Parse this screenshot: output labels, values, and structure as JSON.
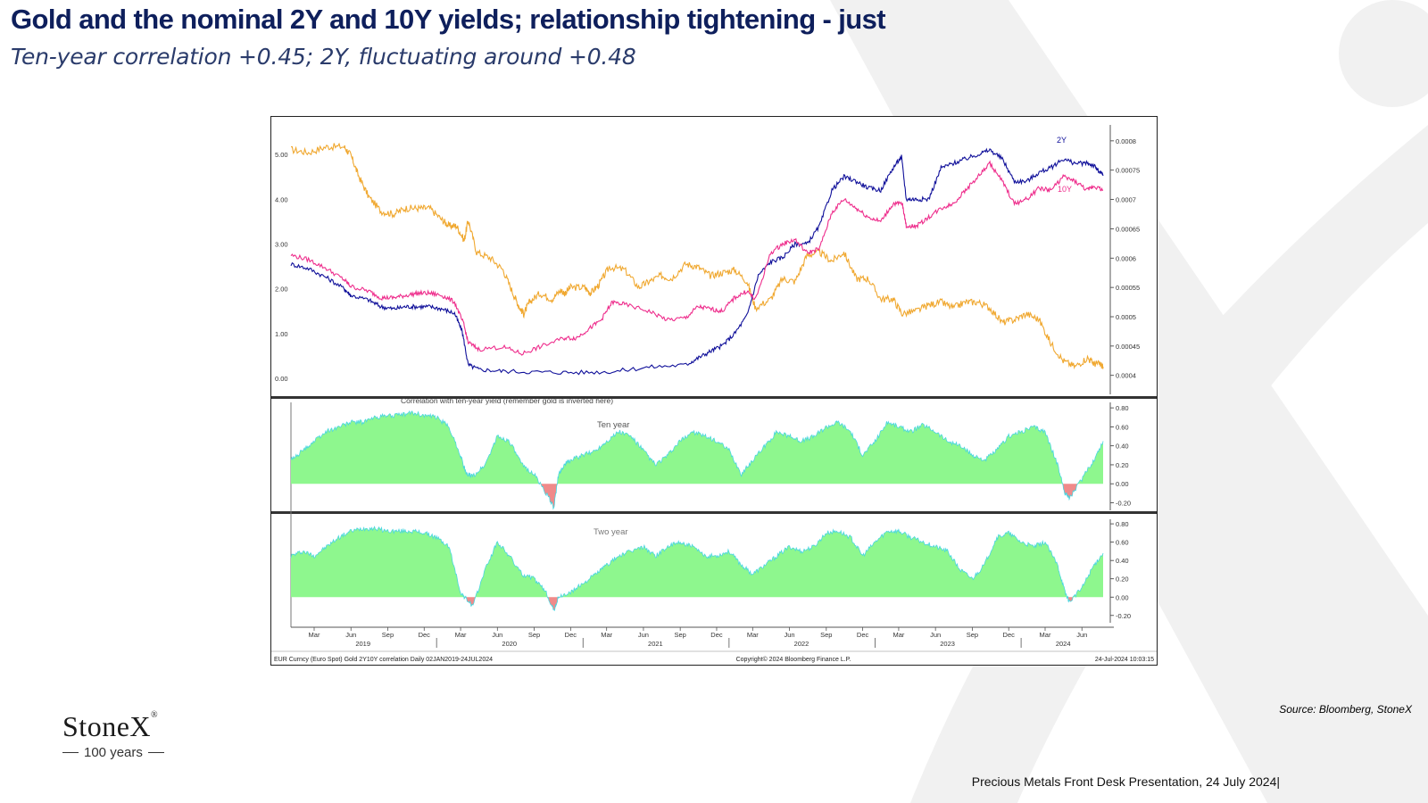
{
  "slide": {
    "title": "Gold and the nominal 2Y and 10Y yields; relationship tightening - just",
    "subtitle": "Ten-year correlation +0.45; 2Y, fluctuating around +0.48",
    "source": "Source: Bloomberg, StoneX",
    "footer": "Precious Metals Front Desk Presentation, 24 July 2024|",
    "logo_name": "StoneX",
    "logo_tagline": "100 years"
  },
  "colors": {
    "title": "#0e1f5c",
    "gold": "#f0a830",
    "two_year": "#10109a",
    "ten_year": "#ee2d8c",
    "corr_positive": "#8ef78e",
    "corr_negative": "#f08a8a",
    "corr_edge": "#49d6e0"
  },
  "chart_data": [
    {
      "type": "line",
      "panel": "top",
      "title": "",
      "x_range": [
        "2019-01-02",
        "2024-07-24"
      ],
      "left_axis": {
        "ticks": [
          "5.00",
          "4.00",
          "3.00",
          "2.00",
          "1.00",
          "0.00"
        ],
        "ylim": [
          0,
          5.5
        ]
      },
      "right_axis": {
        "ticks": [
          "0.0008",
          "0.00075",
          "0.0007",
          "0.00065",
          "0.0006",
          "0.00055",
          "0.0005",
          "0.00045",
          "0.0004"
        ],
        "ylim": [
          0.000395,
          0.000815
        ],
        "note": "gold (EUR, inverted)"
      },
      "series_labels": [
        "2Y",
        "10Y"
      ],
      "series": [
        {
          "key": "gold",
          "axis": "right",
          "x": [
            "2019-01-02",
            "2019-02-15",
            "2019-04-01",
            "2019-05-15",
            "2019-06-01",
            "2019-06-20",
            "2019-07-15",
            "2019-08-15",
            "2019-09-15",
            "2019-10-15",
            "2019-11-15",
            "2019-12-15",
            "2020-01-15",
            "2020-02-01",
            "2020-02-20",
            "2020-03-10",
            "2020-03-20",
            "2020-04-10",
            "2020-05-15",
            "2020-06-15",
            "2020-07-10",
            "2020-07-27",
            "2020-08-06",
            "2020-08-20",
            "2020-09-15",
            "2020-10-15",
            "2020-11-06",
            "2020-11-16",
            "2020-12-01",
            "2021-01-05",
            "2021-01-20",
            "2021-02-10",
            "2021-03-08",
            "2021-04-15",
            "2021-05-20",
            "2021-06-15",
            "2021-07-15",
            "2021-08-10",
            "2021-09-15",
            "2021-10-15",
            "2021-11-15",
            "2021-12-15",
            "2022-01-15",
            "2022-02-15",
            "2022-03-08",
            "2022-04-15",
            "2022-05-15",
            "2022-06-15",
            "2022-07-15",
            "2022-08-15",
            "2022-09-15",
            "2022-10-15",
            "2022-11-15",
            "2022-12-15",
            "2023-01-15",
            "2023-02-15",
            "2023-03-10",
            "2023-04-15",
            "2023-05-15",
            "2023-06-15",
            "2023-07-15",
            "2023-08-15",
            "2023-09-15",
            "2023-10-15",
            "2023-11-15",
            "2023-12-15",
            "2024-01-15",
            "2024-02-15",
            "2024-03-15",
            "2024-04-15",
            "2024-05-15",
            "2024-06-15",
            "2024-07-01",
            "2024-07-15",
            "2024-07-24"
          ],
          "y": [
            0.000785,
            0.00078,
            0.00079,
            0.00079,
            0.000775,
            0.00074,
            0.000705,
            0.00068,
            0.000675,
            0.000685,
            0.000685,
            0.000685,
            0.000665,
            0.000655,
            0.000655,
            0.00063,
            0.000665,
            0.00061,
            0.0006,
            0.00058,
            0.00054,
            0.000515,
            0.000505,
            0.000525,
            0.00054,
            0.00053,
            0.000545,
            0.00054,
            0.00055,
            0.00055,
            0.00054,
            0.000555,
            0.000585,
            0.00058,
            0.00055,
            0.00056,
            0.00057,
            0.000565,
            0.00059,
            0.000585,
            0.00057,
            0.000575,
            0.00058,
            0.00056,
            0.000515,
            0.00053,
            0.000565,
            0.00056,
            0.000605,
            0.00061,
            0.000595,
            0.00061,
            0.000565,
            0.000565,
            0.00053,
            0.00053,
            0.000505,
            0.00051,
            0.00052,
            0.000525,
            0.000515,
            0.000525,
            0.000525,
            0.000515,
            0.00049,
            0.000495,
            0.000505,
            0.000495,
            0.000455,
            0.000425,
            0.000415,
            0.00043,
            0.00042,
            0.00042,
            0.000415
          ]
        },
        {
          "key": "2Y",
          "axis": "left",
          "x": [
            "2019-01-02",
            "2019-02-15",
            "2019-04-01",
            "2019-05-15",
            "2019-06-01",
            "2019-07-15",
            "2019-08-15",
            "2019-09-15",
            "2019-10-15",
            "2019-11-15",
            "2019-12-15",
            "2020-01-15",
            "2020-02-15",
            "2020-03-05",
            "2020-03-20",
            "2020-04-15",
            "2020-06-15",
            "2020-09-15",
            "2020-12-15",
            "2021-03-15",
            "2021-06-15",
            "2021-09-15",
            "2021-10-15",
            "2021-11-15",
            "2021-12-15",
            "2022-01-15",
            "2022-02-15",
            "2022-03-15",
            "2022-04-15",
            "2022-05-15",
            "2022-06-15",
            "2022-07-15",
            "2022-08-15",
            "2022-09-15",
            "2022-10-15",
            "2022-11-15",
            "2022-12-15",
            "2023-01-15",
            "2023-02-15",
            "2023-03-08",
            "2023-03-20",
            "2023-04-15",
            "2023-05-15",
            "2023-06-15",
            "2023-07-15",
            "2023-08-15",
            "2023-09-15",
            "2023-10-15",
            "2023-11-15",
            "2023-12-15",
            "2024-01-15",
            "2024-02-15",
            "2024-03-15",
            "2024-04-15",
            "2024-05-15",
            "2024-06-15",
            "2024-07-01",
            "2024-07-15",
            "2024-07-24"
          ],
          "y": [
            2.55,
            2.45,
            2.25,
            2.0,
            1.85,
            1.75,
            1.6,
            1.55,
            1.6,
            1.6,
            1.6,
            1.55,
            1.45,
            1.05,
            0.3,
            0.2,
            0.16,
            0.14,
            0.13,
            0.15,
            0.25,
            0.3,
            0.45,
            0.6,
            0.73,
            1.0,
            1.4,
            2.3,
            2.6,
            2.7,
            3.0,
            3.0,
            3.4,
            4.2,
            4.5,
            4.4,
            4.25,
            4.2,
            4.7,
            4.95,
            4.0,
            4.0,
            4.0,
            4.7,
            4.8,
            4.9,
            5.0,
            5.1,
            4.9,
            4.4,
            4.4,
            4.6,
            4.7,
            4.9,
            4.8,
            4.8,
            4.75,
            4.6,
            4.55
          ]
        },
        {
          "key": "10Y",
          "axis": "left",
          "x": [
            "2019-01-02",
            "2019-02-15",
            "2019-04-01",
            "2019-05-15",
            "2019-06-01",
            "2019-07-15",
            "2019-08-15",
            "2019-09-15",
            "2019-10-15",
            "2019-11-15",
            "2019-12-15",
            "2020-01-15",
            "2020-02-15",
            "2020-03-09",
            "2020-03-20",
            "2020-04-15",
            "2020-06-15",
            "2020-08-01",
            "2020-09-15",
            "2020-11-15",
            "2020-12-15",
            "2021-01-15",
            "2021-02-15",
            "2021-03-15",
            "2021-04-15",
            "2021-06-15",
            "2021-08-01",
            "2021-09-15",
            "2021-10-15",
            "2021-11-15",
            "2021-12-15",
            "2022-01-15",
            "2022-02-15",
            "2022-03-08",
            "2022-04-15",
            "2022-05-15",
            "2022-06-15",
            "2022-07-15",
            "2022-08-15",
            "2022-09-15",
            "2022-10-15",
            "2022-11-15",
            "2022-12-15",
            "2023-01-15",
            "2023-02-15",
            "2023-03-10",
            "2023-03-20",
            "2023-04-15",
            "2023-05-15",
            "2023-06-15",
            "2023-07-15",
            "2023-08-15",
            "2023-09-15",
            "2023-10-15",
            "2023-11-15",
            "2023-12-15",
            "2024-01-15",
            "2024-02-15",
            "2024-03-15",
            "2024-04-15",
            "2024-05-15",
            "2024-06-15",
            "2024-07-01",
            "2024-07-24"
          ],
          "y": [
            2.75,
            2.65,
            2.45,
            2.2,
            2.05,
            1.95,
            1.8,
            1.8,
            1.85,
            1.9,
            1.9,
            1.85,
            1.7,
            1.2,
            0.8,
            0.65,
            0.7,
            0.55,
            0.7,
            0.9,
            0.9,
            1.1,
            1.3,
            1.7,
            1.65,
            1.5,
            1.3,
            1.35,
            1.6,
            1.55,
            1.5,
            1.8,
            1.95,
            1.75,
            2.8,
            3.0,
            3.1,
            2.8,
            2.9,
            3.7,
            4.0,
            3.8,
            3.6,
            3.5,
            3.9,
            3.9,
            3.4,
            3.4,
            3.6,
            3.8,
            3.9,
            4.2,
            4.5,
            4.8,
            4.4,
            3.9,
            4.0,
            4.25,
            4.2,
            4.5,
            4.4,
            4.2,
            4.3,
            4.2
          ]
        }
      ]
    },
    {
      "type": "area",
      "panel": "middle",
      "title": "Correlation with ten-year yield (remember gold is inverted here)",
      "label": "Ten year",
      "y_ticks": [
        "0.80",
        "0.60",
        "0.40",
        "0.20",
        "0.00",
        "-0.20"
      ],
      "ylim": [
        -0.28,
        0.82
      ],
      "x": [
        "2019-01-02",
        "2019-02-01",
        "2019-03-01",
        "2019-04-01",
        "2019-05-01",
        "2019-06-01",
        "2019-07-01",
        "2019-08-01",
        "2019-09-01",
        "2019-10-01",
        "2019-11-01",
        "2019-12-01",
        "2020-01-01",
        "2020-02-01",
        "2020-03-01",
        "2020-03-15",
        "2020-04-01",
        "2020-05-01",
        "2020-06-01",
        "2020-07-01",
        "2020-08-01",
        "2020-09-01",
        "2020-10-01",
        "2020-10-20",
        "2020-11-01",
        "2020-11-15",
        "2020-12-01",
        "2021-01-01",
        "2021-02-01",
        "2021-03-01",
        "2021-04-01",
        "2021-05-01",
        "2021-06-01",
        "2021-07-01",
        "2021-08-01",
        "2021-09-01",
        "2021-10-01",
        "2021-11-01",
        "2021-12-01",
        "2022-01-01",
        "2022-02-01",
        "2022-03-01",
        "2022-04-01",
        "2022-05-01",
        "2022-06-01",
        "2022-07-01",
        "2022-08-01",
        "2022-09-01",
        "2022-10-01",
        "2022-11-01",
        "2022-12-01",
        "2023-01-01",
        "2023-02-01",
        "2023-03-01",
        "2023-04-01",
        "2023-05-01",
        "2023-06-01",
        "2023-07-01",
        "2023-08-01",
        "2023-09-01",
        "2023-10-01",
        "2023-11-01",
        "2023-12-01",
        "2024-01-01",
        "2024-02-01",
        "2024-03-01",
        "2024-04-01",
        "2024-04-20",
        "2024-05-01",
        "2024-06-01",
        "2024-07-01",
        "2024-07-24"
      ],
      "y": [
        0.25,
        0.35,
        0.45,
        0.55,
        0.6,
        0.65,
        0.65,
        0.7,
        0.72,
        0.72,
        0.75,
        0.72,
        0.7,
        0.6,
        0.3,
        0.1,
        0.08,
        0.2,
        0.5,
        0.45,
        0.2,
        0.1,
        -0.1,
        -0.25,
        0.1,
        0.2,
        0.25,
        0.3,
        0.35,
        0.45,
        0.55,
        0.5,
        0.35,
        0.2,
        0.3,
        0.45,
        0.55,
        0.5,
        0.45,
        0.35,
        0.1,
        0.25,
        0.4,
        0.55,
        0.5,
        0.45,
        0.5,
        0.6,
        0.65,
        0.55,
        0.3,
        0.45,
        0.65,
        0.6,
        0.55,
        0.62,
        0.55,
        0.45,
        0.4,
        0.3,
        0.25,
        0.35,
        0.5,
        0.55,
        0.6,
        0.55,
        0.2,
        -0.1,
        -0.15,
        0.05,
        0.25,
        0.45
      ]
    },
    {
      "type": "area",
      "panel": "bottom",
      "title": "",
      "label": "Two year",
      "y_ticks": [
        "0.80",
        "0.60",
        "0.40",
        "0.20",
        "0.00",
        "-0.20"
      ],
      "ylim": [
        -0.28,
        0.84
      ],
      "x": [
        "2019-01-02",
        "2019-02-01",
        "2019-03-01",
        "2019-04-01",
        "2019-05-01",
        "2019-06-01",
        "2019-07-01",
        "2019-08-01",
        "2019-09-01",
        "2019-10-01",
        "2019-11-01",
        "2019-12-01",
        "2020-01-01",
        "2020-02-01",
        "2020-03-01",
        "2020-03-15",
        "2020-04-01",
        "2020-05-01",
        "2020-06-01",
        "2020-07-01",
        "2020-08-01",
        "2020-09-01",
        "2020-10-01",
        "2020-10-20",
        "2020-11-01",
        "2020-12-01",
        "2021-01-01",
        "2021-02-01",
        "2021-03-01",
        "2021-04-01",
        "2021-05-01",
        "2021-06-01",
        "2021-07-01",
        "2021-08-01",
        "2021-09-01",
        "2021-10-01",
        "2021-11-01",
        "2021-12-01",
        "2022-01-01",
        "2022-02-01",
        "2022-03-01",
        "2022-04-01",
        "2022-05-01",
        "2022-06-01",
        "2022-07-01",
        "2022-08-01",
        "2022-09-01",
        "2022-10-01",
        "2022-11-01",
        "2022-12-01",
        "2023-01-01",
        "2023-02-01",
        "2023-03-01",
        "2023-04-01",
        "2023-05-01",
        "2023-06-01",
        "2023-07-01",
        "2023-08-01",
        "2023-09-01",
        "2023-10-01",
        "2023-11-01",
        "2023-12-01",
        "2024-01-01",
        "2024-02-01",
        "2024-03-01",
        "2024-04-01",
        "2024-04-20",
        "2024-05-01",
        "2024-06-01",
        "2024-07-01",
        "2024-07-24"
      ],
      "y": [
        0.45,
        0.5,
        0.45,
        0.55,
        0.65,
        0.72,
        0.75,
        0.75,
        0.72,
        0.72,
        0.72,
        0.7,
        0.65,
        0.55,
        0.05,
        -0.02,
        -0.1,
        0.3,
        0.6,
        0.45,
        0.25,
        0.2,
        0.05,
        -0.15,
        0.0,
        0.05,
        0.15,
        0.25,
        0.35,
        0.45,
        0.5,
        0.55,
        0.45,
        0.55,
        0.6,
        0.55,
        0.45,
        0.45,
        0.5,
        0.35,
        0.25,
        0.35,
        0.45,
        0.55,
        0.5,
        0.55,
        0.7,
        0.72,
        0.65,
        0.45,
        0.6,
        0.72,
        0.72,
        0.65,
        0.6,
        0.55,
        0.5,
        0.3,
        0.2,
        0.35,
        0.65,
        0.7,
        0.6,
        0.55,
        0.6,
        0.35,
        0.05,
        -0.05,
        0.1,
        0.35,
        0.48
      ]
    }
  ],
  "x_axis": {
    "month_labels": [
      {
        "label": "Mar",
        "date": "2019-03-01"
      },
      {
        "label": "Jun",
        "date": "2019-06-01"
      },
      {
        "label": "Sep",
        "date": "2019-09-01"
      },
      {
        "label": "Dec",
        "date": "2019-12-01"
      },
      {
        "label": "Mar",
        "date": "2020-03-01"
      },
      {
        "label": "Jun",
        "date": "2020-06-01"
      },
      {
        "label": "Sep",
        "date": "2020-09-01"
      },
      {
        "label": "Dec",
        "date": "2020-12-01"
      },
      {
        "label": "Mar",
        "date": "2021-03-01"
      },
      {
        "label": "Jun",
        "date": "2021-06-01"
      },
      {
        "label": "Sep",
        "date": "2021-09-01"
      },
      {
        "label": "Dec",
        "date": "2021-12-01"
      },
      {
        "label": "Mar",
        "date": "2022-03-01"
      },
      {
        "label": "Jun",
        "date": "2022-06-01"
      },
      {
        "label": "Sep",
        "date": "2022-09-01"
      },
      {
        "label": "Dec",
        "date": "2022-12-01"
      },
      {
        "label": "Mar",
        "date": "2023-03-01"
      },
      {
        "label": "Jun",
        "date": "2023-06-01"
      },
      {
        "label": "Sep",
        "date": "2023-09-01"
      },
      {
        "label": "Dec",
        "date": "2023-12-01"
      },
      {
        "label": "Mar",
        "date": "2024-03-01"
      },
      {
        "label": "Jun",
        "date": "2024-06-01"
      }
    ],
    "year_labels": [
      {
        "label": "2019",
        "date": "2019-07-01"
      },
      {
        "label": "2020",
        "date": "2020-07-01"
      },
      {
        "label": "2021",
        "date": "2021-07-01"
      },
      {
        "label": "2022",
        "date": "2022-07-01"
      },
      {
        "label": "2023",
        "date": "2023-07-01"
      },
      {
        "label": "2024",
        "date": "2024-04-15"
      }
    ]
  },
  "bloomberg_footer": {
    "left": "EUR Curncy (Euro Spot) Gold 2Y10Y correlation  Daily 02JAN2019-24JUL2024",
    "center": "Copyright© 2024 Bloomberg Finance L.P.",
    "right": "24-Jul-2024 10:03:15"
  }
}
